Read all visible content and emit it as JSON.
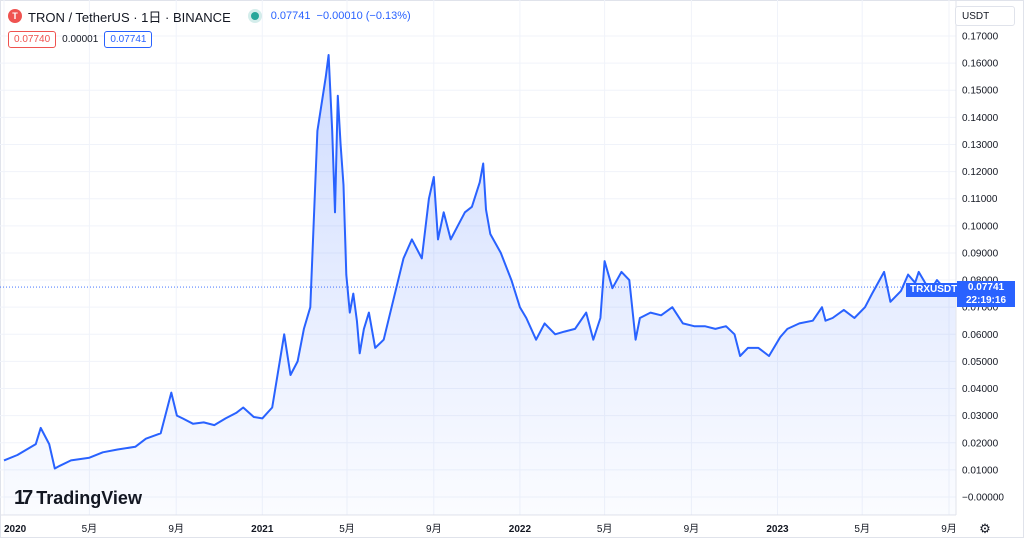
{
  "header": {
    "symbol_icon": "tron-logo-icon",
    "title": "TRON / TetherUS · 1日 · BINANCE",
    "last_price": "0.07741",
    "change": "−0.00010 (−0.13%)",
    "bid": "0.07740",
    "spread": "0.00001",
    "ask": "0.07741"
  },
  "currency_selector": "USDT",
  "price_tag": {
    "symbol": "TRXUSDT",
    "price": "0.07741",
    "countdown": "22:19:16"
  },
  "brand": "TradingView",
  "colors": {
    "line": "#2962ff",
    "fill": "#2962ff",
    "bid": "#ef5350",
    "ask": "#2962ff",
    "status_dot": "#26a69a"
  },
  "chart_data": {
    "type": "area",
    "y_ticks": [
      "0.17000",
      "0.16000",
      "0.15000",
      "0.14000",
      "0.13000",
      "0.12000",
      "0.11000",
      "0.10000",
      "0.09000",
      "0.08000",
      "0.07000",
      "0.06000",
      "0.05000",
      "0.04000",
      "0.03000",
      "0.02000",
      "0.01000",
      "−0.00000"
    ],
    "ylim": [
      -0.0005,
      0.1745
    ],
    "x_ticks": [
      {
        "label": "2020",
        "date": "2020-01-01",
        "major": true
      },
      {
        "label": "5月",
        "date": "2020-05-01",
        "major": false
      },
      {
        "label": "9月",
        "date": "2020-09-01",
        "major": false
      },
      {
        "label": "2021",
        "date": "2021-01-01",
        "major": true
      },
      {
        "label": "5月",
        "date": "2021-05-01",
        "major": false
      },
      {
        "label": "9月",
        "date": "2021-09-01",
        "major": false
      },
      {
        "label": "2022",
        "date": "2022-01-01",
        "major": true
      },
      {
        "label": "5月",
        "date": "2022-05-01",
        "major": false
      },
      {
        "label": "9月",
        "date": "2022-09-01",
        "major": false
      },
      {
        "label": "2023",
        "date": "2023-01-01",
        "major": true
      },
      {
        "label": "5月",
        "date": "2023-05-01",
        "major": false
      },
      {
        "label": "9月",
        "date": "2023-09-01",
        "major": false
      }
    ],
    "xlim": [
      "2020-01-01",
      "2023-09-10"
    ],
    "current_price": 0.07741,
    "series": [
      {
        "x": [
          "2020-01-01",
          "2020-01-20",
          "2020-02-15",
          "2020-02-22",
          "2020-03-05",
          "2020-03-13",
          "2020-03-20",
          "2020-04-05",
          "2020-05-01",
          "2020-05-20",
          "2020-06-10",
          "2020-07-05",
          "2020-07-20",
          "2020-08-10",
          "2020-08-25",
          "2020-09-02",
          "2020-09-10",
          "2020-09-25",
          "2020-10-10",
          "2020-10-25",
          "2020-11-10",
          "2020-11-25",
          "2020-12-05",
          "2020-12-20",
          "2021-01-01",
          "2021-01-15",
          "2021-02-01",
          "2021-02-10",
          "2021-02-20",
          "2021-03-01",
          "2021-03-10",
          "2021-03-20",
          "2021-04-01",
          "2021-04-05",
          "2021-04-10",
          "2021-04-14",
          "2021-04-18",
          "2021-04-22",
          "2021-04-26",
          "2021-04-30",
          "2021-05-05",
          "2021-05-10",
          "2021-05-15",
          "2021-05-19",
          "2021-05-25",
          "2021-06-01",
          "2021-06-10",
          "2021-06-22",
          "2021-07-05",
          "2021-07-20",
          "2021-08-01",
          "2021-08-15",
          "2021-08-25",
          "2021-09-01",
          "2021-09-07",
          "2021-09-15",
          "2021-09-25",
          "2021-10-05",
          "2021-10-15",
          "2021-10-25",
          "2021-11-05",
          "2021-11-10",
          "2021-11-14",
          "2021-11-20",
          "2021-12-05",
          "2021-12-20",
          "2022-01-01",
          "2022-01-10",
          "2022-01-24",
          "2022-02-05",
          "2022-02-20",
          "2022-03-05",
          "2022-03-20",
          "2022-04-05",
          "2022-04-15",
          "2022-04-25",
          "2022-05-01",
          "2022-05-12",
          "2022-05-25",
          "2022-06-05",
          "2022-06-14",
          "2022-06-20",
          "2022-07-05",
          "2022-07-20",
          "2022-08-05",
          "2022-08-20",
          "2022-09-05",
          "2022-09-20",
          "2022-10-05",
          "2022-10-20",
          "2022-11-01",
          "2022-11-09",
          "2022-11-20",
          "2022-12-05",
          "2022-12-20",
          "2023-01-05",
          "2023-01-15",
          "2023-02-01",
          "2023-02-20",
          "2023-03-05",
          "2023-03-10",
          "2023-03-20",
          "2023-04-05",
          "2023-04-20",
          "2023-05-05",
          "2023-05-15",
          "2023-06-01",
          "2023-06-10",
          "2023-06-25",
          "2023-07-05",
          "2023-07-15",
          "2023-07-20",
          "2023-08-05",
          "2023-08-15",
          "2023-08-25",
          "2023-09-05",
          "2023-09-10"
        ],
        "y": [
          0.0135,
          0.0155,
          0.0195,
          0.0255,
          0.0195,
          0.0105,
          0.0115,
          0.0135,
          0.0145,
          0.0165,
          0.0175,
          0.0185,
          0.0215,
          0.0235,
          0.0385,
          0.03,
          0.029,
          0.027,
          0.0275,
          0.0265,
          0.029,
          0.031,
          0.033,
          0.0295,
          0.029,
          0.033,
          0.06,
          0.045,
          0.05,
          0.062,
          0.07,
          0.135,
          0.155,
          0.163,
          0.135,
          0.105,
          0.148,
          0.13,
          0.115,
          0.082,
          0.068,
          0.075,
          0.065,
          0.053,
          0.062,
          0.068,
          0.055,
          0.058,
          0.072,
          0.088,
          0.095,
          0.088,
          0.11,
          0.118,
          0.095,
          0.105,
          0.095,
          0.1,
          0.105,
          0.107,
          0.116,
          0.123,
          0.106,
          0.097,
          0.09,
          0.08,
          0.07,
          0.066,
          0.058,
          0.064,
          0.06,
          0.061,
          0.062,
          0.068,
          0.058,
          0.066,
          0.087,
          0.077,
          0.083,
          0.08,
          0.058,
          0.066,
          0.068,
          0.067,
          0.07,
          0.064,
          0.063,
          0.063,
          0.062,
          0.063,
          0.06,
          0.052,
          0.055,
          0.055,
          0.052,
          0.059,
          0.062,
          0.064,
          0.065,
          0.07,
          0.065,
          0.066,
          0.069,
          0.066,
          0.07,
          0.075,
          0.083,
          0.072,
          0.076,
          0.082,
          0.079,
          0.083,
          0.076,
          0.08,
          0.077,
          0.078,
          0.0774
        ]
      }
    ]
  }
}
